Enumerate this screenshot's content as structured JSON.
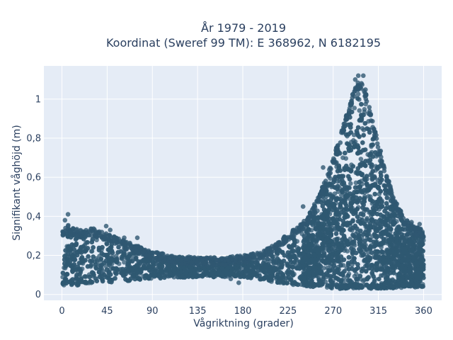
{
  "chart_data": {
    "type": "scatter",
    "title": "År 1979 - 2019",
    "subtitle": "Koordinat (Sweref 99 TM): E 368962, N 6182195",
    "xlabel": "Vågriktning (grader)",
    "ylabel": "Signifikant våghöjd (m)",
    "xlim": [
      -18,
      378
    ],
    "ylim": [
      -0.03,
      1.17
    ],
    "x_ticks": [
      0,
      45,
      90,
      135,
      180,
      225,
      270,
      315,
      360
    ],
    "y_ticks": [
      0,
      0.2,
      0.4,
      0.6,
      0.8,
      1
    ],
    "y_tick_labels": [
      "0",
      "0,2",
      "0,4",
      "0,6",
      "0,8",
      "1"
    ],
    "grid": true,
    "marker_color": "#2f5872",
    "background_color": "#e5ecf6",
    "envelope": {
      "description": "upper and lower bound of the dense point cloud (data units)",
      "upper": [
        [
          0,
          0.33
        ],
        [
          5,
          0.36
        ],
        [
          10,
          0.34
        ],
        [
          20,
          0.33
        ],
        [
          30,
          0.34
        ],
        [
          45,
          0.31
        ],
        [
          60,
          0.28
        ],
        [
          75,
          0.25
        ],
        [
          90,
          0.22
        ],
        [
          110,
          0.2
        ],
        [
          135,
          0.19
        ],
        [
          160,
          0.19
        ],
        [
          180,
          0.2
        ],
        [
          200,
          0.22
        ],
        [
          215,
          0.27
        ],
        [
          230,
          0.33
        ],
        [
          245,
          0.4
        ],
        [
          255,
          0.5
        ],
        [
          265,
          0.62
        ],
        [
          275,
          0.78
        ],
        [
          285,
          0.95
        ],
        [
          292,
          1.07
        ],
        [
          297,
          1.1
        ],
        [
          302,
          1.05
        ],
        [
          308,
          0.92
        ],
        [
          315,
          0.78
        ],
        [
          322,
          0.64
        ],
        [
          330,
          0.5
        ],
        [
          340,
          0.4
        ],
        [
          350,
          0.35
        ],
        [
          360,
          0.33
        ]
      ],
      "lower": [
        [
          0,
          0.04
        ],
        [
          45,
          0.06
        ],
        [
          90,
          0.08
        ],
        [
          135,
          0.09
        ],
        [
          180,
          0.09
        ],
        [
          225,
          0.05
        ],
        [
          270,
          0.03
        ],
        [
          300,
          0.03
        ],
        [
          330,
          0.03
        ],
        [
          360,
          0.04
        ]
      ]
    },
    "outliers": [
      [
        6,
        0.41
      ],
      [
        3,
        0.38
      ],
      [
        44,
        0.35
      ],
      [
        48,
        0.33
      ],
      [
        62,
        0.29
      ],
      [
        75,
        0.29
      ],
      [
        168,
        0.08
      ],
      [
        176,
        0.06
      ],
      [
        300,
        1.12
      ],
      [
        295,
        1.12
      ],
      [
        292,
        1.1
      ],
      [
        260,
        0.65
      ],
      [
        266,
        0.62
      ],
      [
        271,
        0.59
      ],
      [
        240,
        0.45
      ],
      [
        250,
        0.44
      ],
      [
        348,
        0.37
      ],
      [
        356,
        0.36
      ]
    ]
  }
}
